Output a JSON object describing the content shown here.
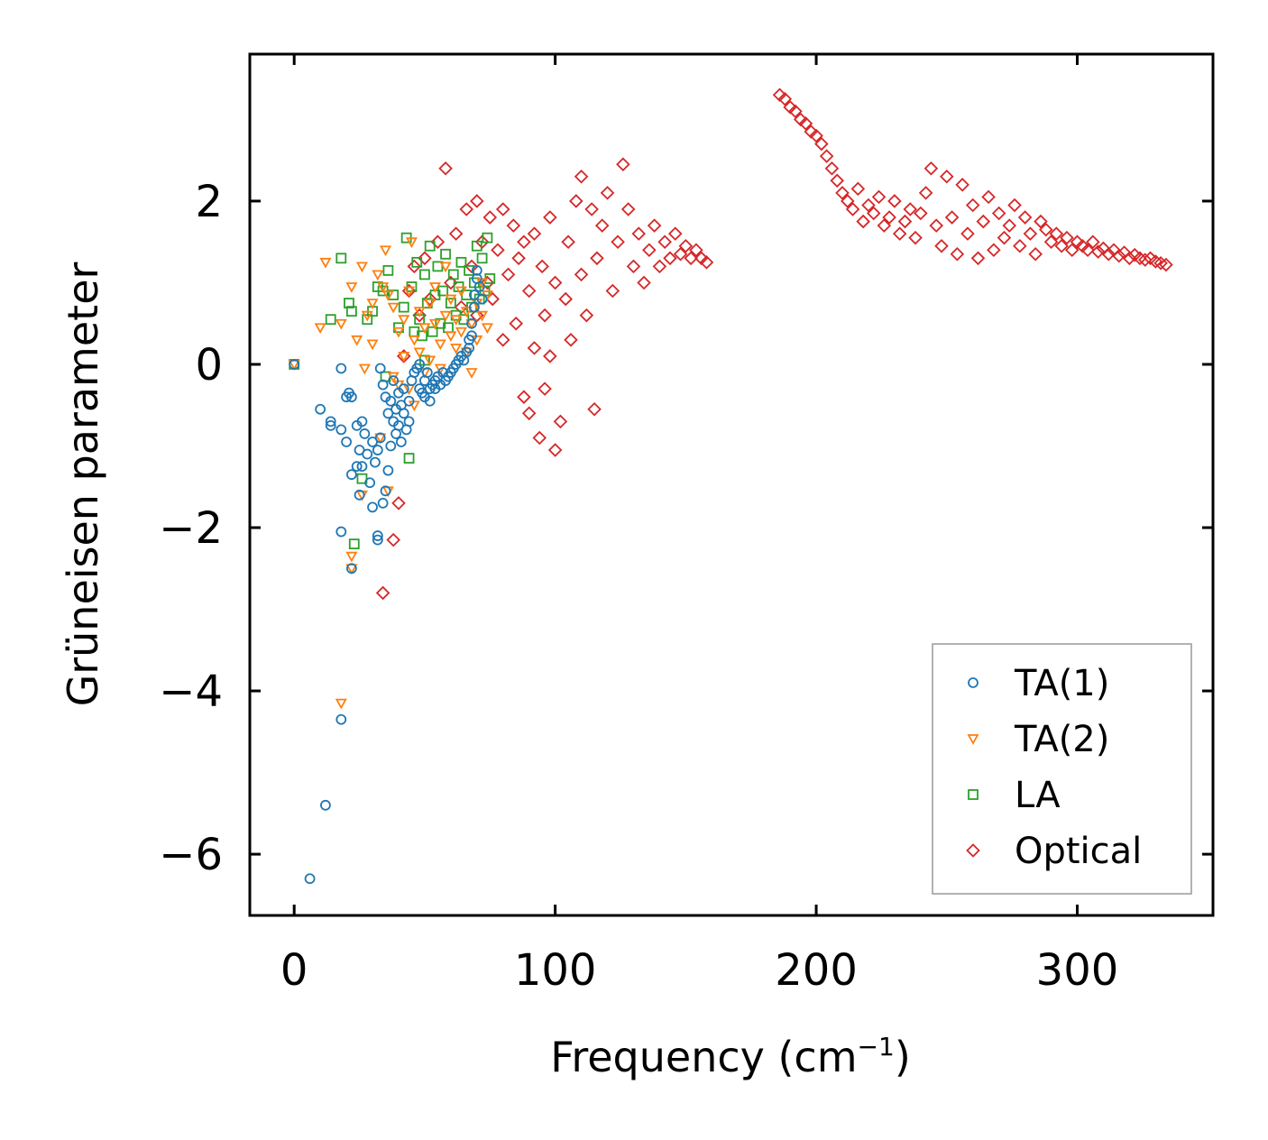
{
  "chart_data": {
    "type": "scatter",
    "title": "",
    "xlabel": "Frequency (cm",
    "xlabel_sup": "−1",
    "xlabel_end": ")",
    "ylabel": "Grüneisen parameter",
    "xlim": [
      -17,
      352
    ],
    "ylim": [
      -6.75,
      3.8
    ],
    "xticks": [
      0,
      100,
      200,
      300
    ],
    "xtick_labels": [
      "0",
      "100",
      "200",
      "300"
    ],
    "yticks": [
      -6,
      -4,
      -2,
      0,
      2
    ],
    "ytick_labels": [
      "−6",
      "−4",
      "−2",
      "0",
      "2"
    ],
    "grid": false,
    "legend_position": "lower-right",
    "series": [
      {
        "name": "TA(1)",
        "marker": "circle",
        "color": "#1f77b4",
        "x": [
          0,
          6,
          12,
          10,
          14,
          14,
          18,
          18,
          18,
          18,
          20,
          20,
          21,
          22,
          22,
          22,
          24,
          24,
          25,
          25,
          26,
          26,
          27,
          28,
          29,
          30,
          30,
          31,
          32,
          32,
          32,
          33,
          33,
          34,
          34,
          35,
          35,
          36,
          36,
          37,
          37,
          38,
          38,
          39,
          39,
          40,
          40,
          41,
          41,
          42,
          42,
          43,
          44,
          44,
          45,
          46,
          47,
          48,
          48,
          49,
          50,
          50,
          51,
          52,
          52,
          53,
          54,
          54,
          55,
          56,
          57,
          58,
          59,
          60,
          61,
          62,
          63,
          64,
          65,
          66,
          67,
          67,
          68,
          68,
          69,
          69,
          70,
          70,
          71,
          72
        ],
        "y": [
          0,
          -6.3,
          -5.4,
          -0.55,
          -0.7,
          -0.75,
          -0.05,
          -0.8,
          -2.05,
          -4.35,
          -0.4,
          -0.95,
          -0.35,
          -0.4,
          -2.5,
          -1.35,
          -1.25,
          -0.75,
          -1.05,
          -1.6,
          -0.7,
          -1.25,
          -0.85,
          -1.1,
          -1.45,
          -0.95,
          -1.75,
          -1.2,
          -1.05,
          -2.1,
          -2.15,
          -0.05,
          -0.9,
          -0.25,
          -1.7,
          -1.55,
          -0.4,
          -0.6,
          -1.3,
          -0.45,
          -1.0,
          -0.2,
          -0.7,
          -0.55,
          -0.85,
          -0.35,
          -0.75,
          -0.5,
          -0.95,
          -0.3,
          -0.6,
          -0.8,
          -0.7,
          -0.45,
          -0.2,
          -0.1,
          -0.05,
          0.0,
          -0.3,
          -0.35,
          -0.2,
          -0.4,
          -0.1,
          -0.45,
          -0.3,
          -0.25,
          -0.2,
          -0.3,
          -0.15,
          -0.25,
          -0.1,
          -0.2,
          -0.15,
          -0.1,
          -0.05,
          0.0,
          0.05,
          0.1,
          0.05,
          0.15,
          0.2,
          0.3,
          0.35,
          0.5,
          0.7,
          0.85,
          1.05,
          1.15,
          0.95,
          0.8
        ]
      },
      {
        "name": "TA(2)",
        "marker": "triangle-down",
        "color": "#ff7f0e",
        "x": [
          0,
          10,
          12,
          18,
          18,
          22,
          22,
          22,
          24,
          26,
          26,
          27,
          28,
          30,
          30,
          32,
          33,
          34,
          35,
          36,
          36,
          38,
          38,
          40,
          40,
          42,
          42,
          44,
          44,
          45,
          46,
          46,
          48,
          48,
          50,
          50,
          52,
          52,
          54,
          54,
          56,
          56,
          58,
          58,
          60,
          60,
          62,
          62,
          64,
          64,
          66,
          66,
          68,
          68,
          70,
          70,
          72,
          72,
          74,
          74
        ],
        "y": [
          0,
          0.45,
          1.25,
          0.5,
          -4.15,
          0.95,
          -2.35,
          -2.5,
          0.3,
          1.2,
          -1.6,
          -0.05,
          0.6,
          0.75,
          0.25,
          1.1,
          -0.9,
          0.95,
          1.4,
          0.85,
          -1.55,
          -0.15,
          0.7,
          0.4,
          -0.25,
          0.1,
          0.55,
          -0.3,
          0.9,
          1.5,
          0.3,
          -0.5,
          0.65,
          0.15,
          0.45,
          -0.1,
          0.75,
          0.05,
          0.5,
          0.95,
          0.25,
          -0.05,
          0.6,
          1.2,
          0.35,
          0.8,
          0.55,
          0.2,
          0.4,
          0.9,
          0.15,
          0.65,
          0.5,
          -0.1,
          0.75,
          0.3,
          0.6,
          1.0,
          0.45,
          0.85
        ]
      },
      {
        "name": "LA",
        "marker": "square",
        "color": "#2ca02c",
        "x": [
          0,
          14,
          18,
          21,
          22,
          23,
          26,
          28,
          30,
          32,
          34,
          35,
          36,
          38,
          40,
          42,
          43,
          44,
          45,
          46,
          47,
          48,
          49,
          50,
          50,
          51,
          52,
          53,
          54,
          55,
          56,
          57,
          58,
          59,
          60,
          61,
          62,
          63,
          64,
          65,
          66,
          67,
          68,
          69,
          70,
          71,
          72,
          73,
          74,
          75
        ],
        "y": [
          0,
          0.55,
          1.3,
          0.75,
          0.65,
          -2.2,
          -1.4,
          0.55,
          0.65,
          0.95,
          0.9,
          -0.15,
          1.15,
          0.85,
          0.45,
          0.7,
          1.55,
          -1.15,
          0.95,
          0.4,
          1.25,
          0.55,
          0.35,
          1.1,
          0.05,
          0.75,
          1.45,
          0.4,
          0.85,
          1.2,
          0.5,
          0.9,
          1.35,
          0.45,
          0.75,
          1.1,
          0.6,
          0.95,
          1.25,
          0.55,
          0.85,
          1.15,
          0.7,
          1.0,
          1.45,
          0.8,
          1.3,
          0.9,
          1.55,
          1.05
        ]
      },
      {
        "name": "Optical",
        "marker": "diamond",
        "color": "#d62728",
        "x": [
          34,
          38,
          40,
          42,
          44,
          46,
          48,
          50,
          52,
          55,
          58,
          60,
          62,
          64,
          66,
          68,
          70,
          70,
          72,
          74,
          75,
          76,
          78,
          80,
          80,
          82,
          84,
          85,
          86,
          88,
          88,
          90,
          90,
          92,
          92,
          94,
          95,
          96,
          96,
          98,
          98,
          100,
          100,
          102,
          104,
          105,
          106,
          108,
          110,
          110,
          112,
          114,
          115,
          116,
          118,
          120,
          122,
          124,
          126,
          128,
          130,
          132,
          134,
          136,
          138,
          140,
          142,
          144,
          146,
          148,
          150,
          152,
          154,
          156,
          158,
          186,
          188,
          190,
          192,
          194,
          196,
          198,
          200,
          202,
          204,
          206,
          208,
          210,
          212,
          214,
          216,
          218,
          220,
          222,
          224,
          226,
          228,
          230,
          232,
          234,
          236,
          238,
          240,
          242,
          244,
          246,
          248,
          250,
          252,
          254,
          256,
          258,
          260,
          262,
          264,
          266,
          268,
          270,
          272,
          274,
          276,
          278,
          280,
          282,
          284,
          286,
          288,
          290,
          292,
          294,
          296,
          298,
          300,
          302,
          304,
          306,
          308,
          310,
          312,
          314,
          316,
          318,
          320,
          322,
          324,
          326,
          328,
          330,
          332,
          334
        ],
        "y": [
          -2.8,
          -2.15,
          -1.7,
          0.1,
          0.9,
          1.2,
          0.6,
          1.3,
          0.8,
          1.5,
          2.4,
          1.0,
          1.6,
          0.7,
          1.9,
          1.2,
          2.0,
          0.6,
          1.5,
          1.0,
          1.8,
          0.8,
          1.4,
          1.9,
          0.3,
          1.1,
          1.7,
          0.5,
          1.3,
          -0.4,
          1.5,
          0.9,
          -0.6,
          1.6,
          0.2,
          -0.9,
          1.2,
          0.6,
          -0.3,
          1.8,
          0.1,
          1.0,
          -1.05,
          -0.7,
          0.8,
          1.5,
          0.3,
          2.0,
          2.3,
          1.1,
          0.6,
          1.9,
          -0.55,
          1.3,
          1.7,
          2.1,
          0.9,
          1.5,
          2.45,
          1.9,
          1.2,
          1.6,
          1.0,
          1.4,
          1.7,
          1.2,
          1.5,
          1.3,
          1.6,
          1.35,
          1.45,
          1.3,
          1.4,
          1.3,
          1.25,
          3.3,
          3.25,
          3.15,
          3.1,
          3.0,
          2.95,
          2.85,
          2.8,
          2.7,
          2.55,
          2.4,
          2.25,
          2.1,
          2.0,
          1.9,
          2.15,
          1.75,
          1.95,
          1.85,
          2.05,
          1.7,
          1.8,
          2.0,
          1.6,
          1.75,
          1.9,
          1.55,
          1.85,
          2.1,
          2.4,
          1.7,
          1.45,
          2.3,
          1.8,
          1.35,
          2.2,
          1.6,
          1.95,
          1.3,
          1.75,
          2.05,
          1.4,
          1.85,
          1.55,
          1.7,
          1.95,
          1.45,
          1.8,
          1.6,
          1.35,
          1.75,
          1.65,
          1.5,
          1.6,
          1.45,
          1.55,
          1.4,
          1.5,
          1.45,
          1.4,
          1.5,
          1.38,
          1.42,
          1.35,
          1.4,
          1.33,
          1.37,
          1.3,
          1.34,
          1.3,
          1.28,
          1.3,
          1.26,
          1.24,
          1.22
        ]
      }
    ]
  }
}
